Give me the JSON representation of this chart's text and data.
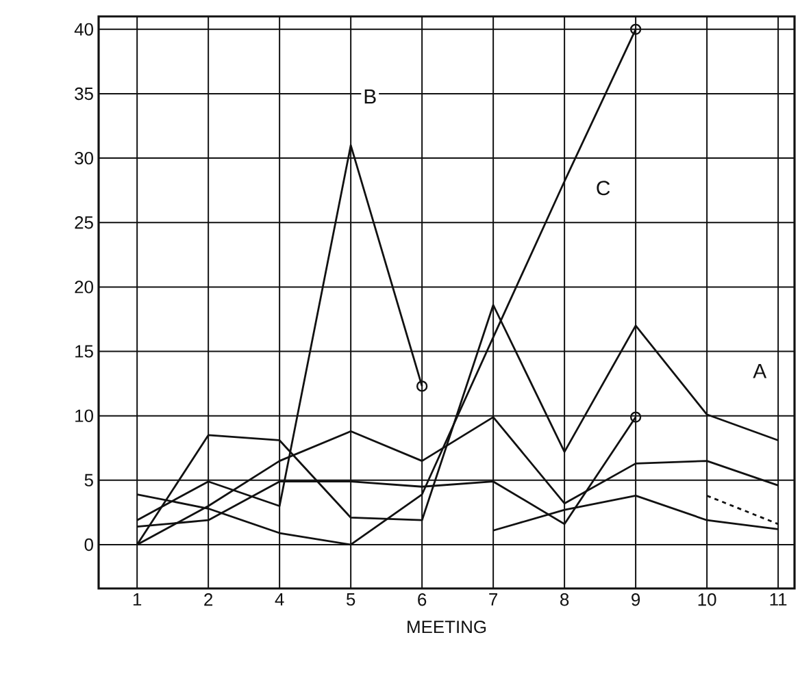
{
  "chart_data": {
    "type": "line",
    "xlabel": "MEETING",
    "categories": [
      "1",
      "2",
      "4",
      "5",
      "6",
      "7",
      "8",
      "9",
      "10",
      "11"
    ],
    "ylim": [
      -3.4,
      41
    ],
    "yticks": [
      0,
      5,
      10,
      15,
      20,
      25,
      30,
      35,
      40
    ],
    "grid": true,
    "color": "#111111",
    "series": [
      {
        "values": [
          0,
          8.5,
          8.1,
          2.1,
          1.9,
          18.6,
          7.2,
          17.0,
          10.1,
          8.1
        ]
      },
      {
        "values": [
          1.9,
          4.9,
          3.0,
          31,
          12.3,
          null,
          null,
          null,
          null,
          null
        ]
      },
      {
        "values": [
          3.9,
          2.8,
          0.9,
          0,
          3.9,
          16.1,
          28.2,
          40,
          null,
          null
        ]
      },
      {
        "values": [
          0,
          3.0,
          6.5,
          8.8,
          6.5,
          9.9,
          3.2,
          6.3,
          6.5,
          4.6
        ]
      },
      {
        "values": [
          1.4,
          1.9,
          4.9,
          4.9,
          4.5,
          4.9,
          1.6,
          9.9,
          null,
          null
        ]
      },
      {
        "values": [
          null,
          null,
          null,
          null,
          null,
          1.1,
          2.7,
          3.8,
          1.9,
          1.2
        ]
      },
      {
        "values": [
          null,
          null,
          null,
          null,
          null,
          null,
          null,
          null,
          3.8,
          1.6
        ],
        "line_style": "dashed"
      },
      {
        "type": "scatter",
        "marker": "circle",
        "x": [
          "6",
          "9",
          "9"
        ],
        "values": [
          12.3,
          40,
          9.9
        ]
      }
    ],
    "annotations": [
      "A",
      "B",
      "C"
    ]
  }
}
